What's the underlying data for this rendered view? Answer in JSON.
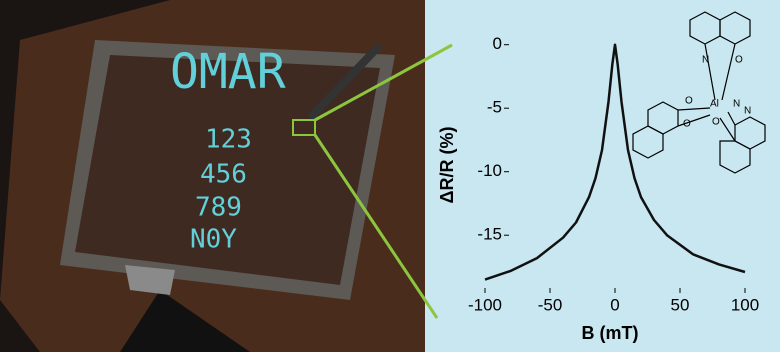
{
  "illustration": {
    "display_text": [
      "OMAR",
      "123",
      "456",
      "789",
      "N0Y"
    ]
  },
  "molecule": {
    "atoms": [
      "N",
      "O",
      "O",
      "Al",
      "N",
      "O",
      "N",
      "O"
    ]
  },
  "chart_data": {
    "type": "line",
    "xlabel": "B (mT)",
    "ylabel": "ΔR/R (%)",
    "x": [
      -100,
      -80,
      -60,
      -40,
      -30,
      -20,
      -15,
      -10,
      -5,
      -2,
      0,
      2,
      5,
      10,
      15,
      20,
      30,
      40,
      60,
      80,
      100
    ],
    "series": [
      {
        "name": null,
        "color": "#111111",
        "values": [
          -18.5,
          -17.8,
          -16.8,
          -15.2,
          -14,
          -12,
          -10.5,
          -8.3,
          -4.5,
          -1.5,
          0,
          -1.5,
          -4.5,
          -8.3,
          -10.5,
          -12,
          -13.8,
          -15,
          -16.5,
          -17.3,
          -17.9
        ]
      }
    ],
    "xlim": [
      -100,
      100
    ],
    "xticks": [
      -100,
      -50,
      0,
      50,
      100
    ],
    "ylim": [
      -19,
      1
    ],
    "yticks": [
      0,
      -5,
      -10,
      -15
    ],
    "background": "#c9e7f1"
  }
}
